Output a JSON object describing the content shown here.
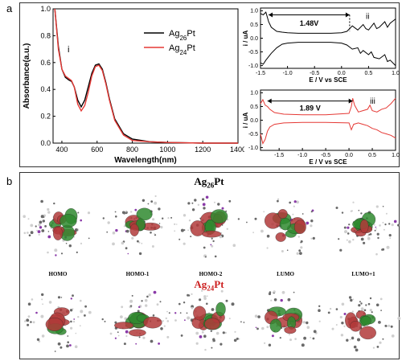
{
  "panel_a_label": "a",
  "panel_b_label": "b",
  "chart_data": [
    {
      "type": "line",
      "panel_mark": "i",
      "xlabel": "Wavelength(nm)",
      "ylabel": "Absorbance(a.u.)",
      "xlim": [
        350,
        1400
      ],
      "ylim": [
        0,
        1
      ],
      "xticks": [
        "400",
        "600",
        "800",
        "1000",
        "1200",
        "1400"
      ],
      "yticks": [
        "0.0",
        "0.2",
        "0.4",
        "0.6",
        "0.8",
        "1.0"
      ],
      "legend_position": "top-right",
      "series": [
        {
          "name": "Ag26Pt",
          "name_main": "Ag",
          "name_sub": "26",
          "name_suffix": "Pt",
          "color": "#000000",
          "x": [
            360,
            380,
            400,
            420,
            440,
            455,
            470,
            490,
            510,
            530,
            550,
            570,
            590,
            610,
            630,
            650,
            670,
            700,
            750,
            800,
            900,
            1000,
            1200,
            1400
          ],
          "y": [
            1.0,
            0.72,
            0.55,
            0.49,
            0.47,
            0.46,
            0.42,
            0.32,
            0.27,
            0.32,
            0.42,
            0.52,
            0.58,
            0.59,
            0.55,
            0.45,
            0.33,
            0.18,
            0.07,
            0.03,
            0.01,
            0.005,
            0.0,
            0.0
          ]
        },
        {
          "name": "Ag24Pt",
          "name_main": "Ag",
          "name_sub": "24",
          "name_suffix": "Pt",
          "color": "#e53935",
          "x": [
            360,
            380,
            400,
            420,
            440,
            455,
            470,
            490,
            510,
            530,
            550,
            570,
            590,
            610,
            630,
            650,
            670,
            700,
            750,
            800,
            900,
            1000,
            1200,
            1400
          ],
          "y": [
            1.0,
            0.7,
            0.55,
            0.5,
            0.48,
            0.465,
            0.42,
            0.29,
            0.24,
            0.28,
            0.38,
            0.5,
            0.57,
            0.58,
            0.54,
            0.44,
            0.32,
            0.17,
            0.06,
            0.02,
            0.01,
            0.005,
            0.0,
            0.0
          ]
        }
      ]
    },
    {
      "type": "line",
      "panel_mark": "ii",
      "gap_label": "1.48V",
      "xlabel": "E / V vs SCE",
      "ylabel": "i / uA",
      "xlim": [
        -1.5,
        1.0
      ],
      "ylim": [
        -1.1,
        1.1
      ],
      "xticks": [
        "-1.5",
        "-1.0",
        "-0.5",
        "0.0",
        "0.5",
        "1.0"
      ],
      "yticks": [
        "-1.0",
        "-0.5",
        "0.0",
        "0.5",
        "1.0"
      ],
      "series": [
        {
          "color": "#000000",
          "x": [
            -1.5,
            -1.45,
            -1.4,
            -1.35,
            -1.3,
            -1.2,
            -1.1,
            -1.0,
            -0.8,
            -0.5,
            -0.2,
            0.0,
            0.1,
            0.15,
            0.2,
            0.3,
            0.4,
            0.45,
            0.5,
            0.6,
            0.65,
            0.7,
            0.8,
            0.85,
            0.9,
            1.0
          ],
          "y": [
            0.9,
            0.85,
            0.95,
            0.6,
            0.4,
            0.25,
            0.22,
            0.2,
            0.18,
            0.18,
            0.18,
            0.2,
            0.25,
            0.35,
            0.45,
            0.3,
            0.5,
            0.35,
            0.3,
            0.55,
            0.35,
            0.4,
            0.6,
            0.4,
            0.55,
            0.7
          ]
        },
        {
          "color": "#000000",
          "x": [
            -1.5,
            -1.45,
            -1.4,
            -1.3,
            -1.2,
            -1.1,
            -1.0,
            -0.8,
            -0.5,
            -0.2,
            0.0,
            0.1,
            0.2,
            0.3,
            0.35,
            0.4,
            0.5,
            0.55,
            0.6,
            0.7,
            0.8,
            0.85,
            0.9,
            1.0
          ],
          "y": [
            -0.9,
            -0.95,
            -0.8,
            -0.55,
            -0.35,
            -0.22,
            -0.18,
            -0.15,
            -0.15,
            -0.15,
            -0.18,
            -0.25,
            -0.4,
            -0.35,
            -0.55,
            -0.45,
            -0.6,
            -0.5,
            -0.7,
            -0.75,
            -0.6,
            -0.85,
            -0.8,
            -1.0
          ]
        }
      ]
    },
    {
      "type": "line",
      "panel_mark": "iii",
      "gap_label": "1.89 V",
      "xlabel": "E / V vs SCE",
      "ylabel": "i / uA",
      "xlim": [
        -1.9,
        1.0
      ],
      "ylim": [
        -1.1,
        1.1
      ],
      "xticks": [
        "-1.5",
        "-1.0",
        "-0.5",
        "0.0",
        "0.5",
        "1.0"
      ],
      "yticks": [
        "-1.0",
        "-0.5",
        "0.0",
        "0.5",
        "1.0"
      ],
      "series": [
        {
          "color": "#e53935",
          "x": [
            -1.9,
            -1.85,
            -1.8,
            -1.75,
            -1.7,
            -1.6,
            -1.4,
            -1.0,
            -0.5,
            0.0,
            0.05,
            0.08,
            0.12,
            0.2,
            0.3,
            0.4,
            0.45,
            0.5,
            0.6,
            0.7,
            0.8,
            0.9,
            1.0
          ],
          "y": [
            0.6,
            0.75,
            0.55,
            0.5,
            0.4,
            0.28,
            0.22,
            0.2,
            0.2,
            0.25,
            0.5,
            0.8,
            0.55,
            0.3,
            0.35,
            0.4,
            0.55,
            0.35,
            0.3,
            0.4,
            0.45,
            0.6,
            0.8
          ]
        },
        {
          "color": "#e53935",
          "x": [
            -1.9,
            -1.85,
            -1.8,
            -1.75,
            -1.7,
            -1.6,
            -1.4,
            -1.0,
            -0.5,
            0.0,
            0.05,
            0.1,
            0.2,
            0.3,
            0.4,
            0.5,
            0.6,
            0.7,
            0.8,
            0.9,
            1.0
          ],
          "y": [
            -0.5,
            -0.85,
            -0.7,
            -0.4,
            -0.25,
            -0.15,
            -0.1,
            -0.08,
            -0.08,
            -0.1,
            -0.35,
            -0.15,
            -0.1,
            -0.15,
            -0.2,
            -0.3,
            -0.35,
            -0.45,
            -0.5,
            -0.55,
            -0.65
          ]
        }
      ]
    }
  ],
  "panel_b": {
    "row1_title_main": "Ag",
    "row1_title_sub": "26",
    "row1_title_suffix": "Pt",
    "row2_title_main": "Ag",
    "row2_title_sub": "24",
    "row2_title_suffix": "Pt",
    "row2_title_color": "#cc1f1f",
    "orbital_labels": [
      "HOMO",
      "HOMO-1",
      "HOMO-2",
      "LUMO",
      "LUMO+1"
    ],
    "lobe_colors": {
      "positive": "#b23a3a",
      "negative": "#2f8a2f",
      "atoms_light": "#cfcfcf",
      "atoms_dark": "#6a6a6a",
      "atoms_accent": "#8a3aa8"
    }
  }
}
